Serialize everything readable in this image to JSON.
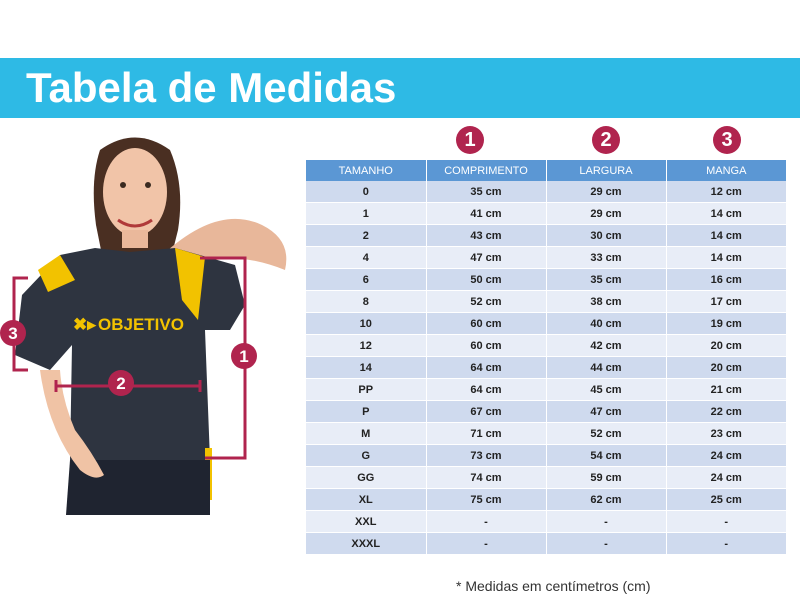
{
  "banner": {
    "title": "Tabela de Medidas"
  },
  "figure": {
    "shirt_text": "OBJETIVO",
    "markers": [
      "1",
      "2",
      "3"
    ]
  },
  "column_numbers": [
    "1",
    "2",
    "3"
  ],
  "table": {
    "headers": [
      "TAMANHO",
      "COMPRIMENTO",
      "LARGURA",
      "MANGA"
    ],
    "rows": [
      [
        "0",
        "35 cm",
        "29 cm",
        "12 cm"
      ],
      [
        "1",
        "41 cm",
        "29 cm",
        "14 cm"
      ],
      [
        "2",
        "43 cm",
        "30 cm",
        "14 cm"
      ],
      [
        "4",
        "47 cm",
        "33 cm",
        "14 cm"
      ],
      [
        "6",
        "50 cm",
        "35 cm",
        "16 cm"
      ],
      [
        "8",
        "52 cm",
        "38 cm",
        "17 cm"
      ],
      [
        "10",
        "60 cm",
        "40 cm",
        "19 cm"
      ],
      [
        "12",
        "60 cm",
        "42 cm",
        "20 cm"
      ],
      [
        "14",
        "64 cm",
        "44 cm",
        "20 cm"
      ],
      [
        "PP",
        "64 cm",
        "45 cm",
        "21 cm"
      ],
      [
        "P",
        "67 cm",
        "47 cm",
        "22 cm"
      ],
      [
        "M",
        "71 cm",
        "52 cm",
        "23 cm"
      ],
      [
        "G",
        "73 cm",
        "54 cm",
        "24 cm"
      ],
      [
        "GG",
        "74 cm",
        "59 cm",
        "24 cm"
      ],
      [
        "XL",
        "75 cm",
        "62 cm",
        "25 cm"
      ],
      [
        "XXL",
        "-",
        "-",
        "-"
      ],
      [
        "XXXL",
        "-",
        "-",
        "-"
      ]
    ]
  },
  "footnote": "* Medidas em centímetros (cm)",
  "colors": {
    "banner": "#2ebae5",
    "header": "#5b97d4",
    "accent": "#b0244e",
    "shirt": "#2e3440",
    "shirt_trim": "#f2c200"
  }
}
